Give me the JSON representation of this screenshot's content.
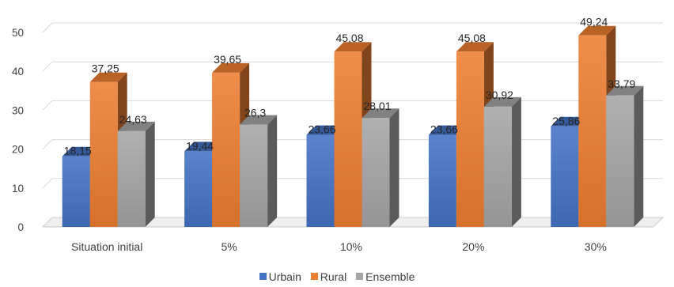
{
  "chart_data": {
    "type": "bar",
    "categories": [
      "Situation initial",
      "5%",
      "10%",
      "20%",
      "30%"
    ],
    "series": [
      {
        "name": "Urbain",
        "values": [
          18.15,
          19.44,
          23.66,
          23.66,
          25.86
        ],
        "labels": [
          "18,15",
          "19,44",
          "23,66",
          "23,66",
          "25,86"
        ],
        "color": "#4472C4"
      },
      {
        "name": "Rural",
        "values": [
          37.25,
          39.65,
          45.08,
          45.08,
          49.24
        ],
        "labels": [
          "37,25",
          "39,65",
          "45,08",
          "45,08",
          "49,24"
        ],
        "color": "#ED7D31"
      },
      {
        "name": "Ensemble",
        "values": [
          24.63,
          26.3,
          28.01,
          30.92,
          33.79
        ],
        "labels": [
          "24,63",
          "26,3",
          "28,01",
          "30,92",
          "33,79"
        ],
        "color": "#A5A5A5"
      }
    ],
    "yticks": [
      "0",
      "10",
      "20",
      "30",
      "40",
      "50"
    ],
    "ylim": [
      0,
      50
    ],
    "grid": true,
    "legend_position": "bottom",
    "three_d": true
  }
}
